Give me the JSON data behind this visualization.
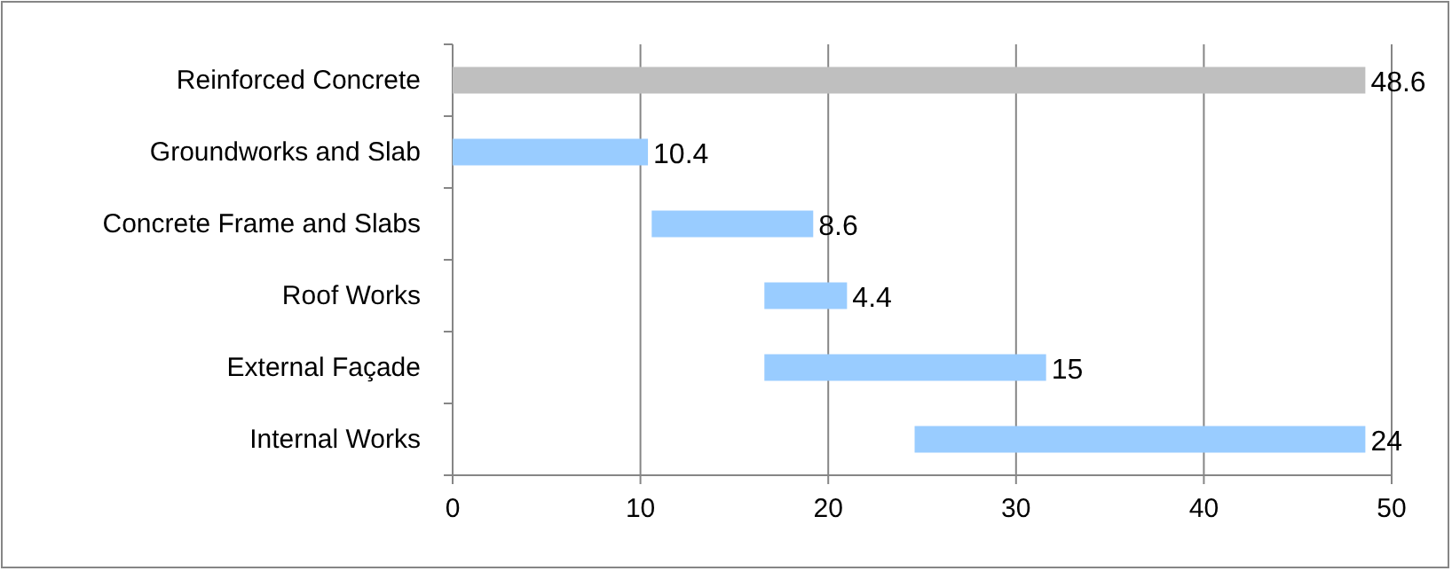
{
  "chart_data": {
    "type": "bar",
    "orientation": "horizontal",
    "categories": [
      "Reinforced Concrete",
      "Groundworks and Slab",
      "Concrete Frame and Slabs",
      "Roof Works",
      "External Façade",
      "Internal Works"
    ],
    "values": [
      48.6,
      10.4,
      8.6,
      4.4,
      15,
      24
    ],
    "base": [
      0,
      0,
      10.6,
      16.6,
      16.6,
      24.6
    ],
    "colors": [
      "#bfbfbf",
      "#99ccff",
      "#99ccff",
      "#99ccff",
      "#99ccff",
      "#99ccff"
    ],
    "xlim": [
      0,
      50
    ],
    "xticks": [
      0,
      10,
      20,
      30,
      40,
      50
    ],
    "grid": "x",
    "data_labels": true
  }
}
